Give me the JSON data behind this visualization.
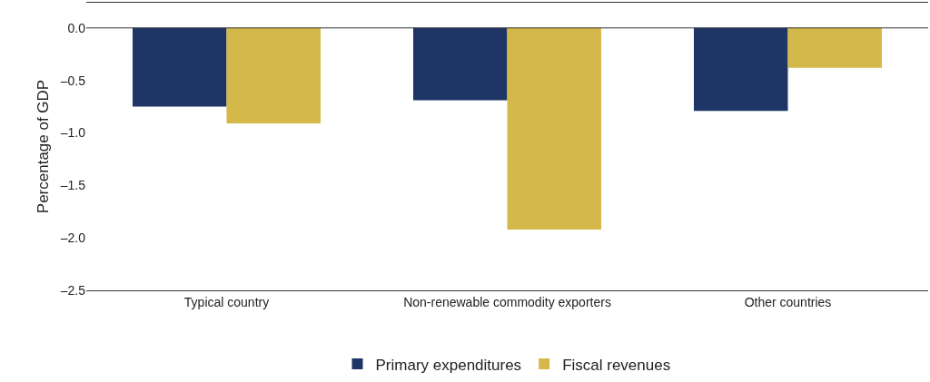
{
  "chart_data": {
    "type": "bar",
    "ylabel": "Percentage of GDP",
    "categories": [
      "Typical country",
      "Non-renewable commodity exporters",
      "Other countries"
    ],
    "series": [
      {
        "name": "Primary expenditures",
        "color": "#1f3566",
        "values": [
          -0.75,
          -0.69,
          -0.79
        ]
      },
      {
        "name": "Fiscal revenues",
        "color": "#d4b94a",
        "values": [
          -0.91,
          -1.92,
          -0.38
        ]
      }
    ],
    "ylim": [
      -2.5,
      0.24
    ],
    "yticks": [
      {
        "value": 0,
        "label": "0.0"
      },
      {
        "value": -0.5,
        "label": "–0.5"
      },
      {
        "value": -1,
        "label": "–1.0"
      },
      {
        "value": -1.5,
        "label": "–1.5"
      },
      {
        "value": -2,
        "label": "–2.0"
      },
      {
        "value": -2.5,
        "label": "–2.5"
      }
    ],
    "ref_lines": [
      {
        "axis": "y",
        "value": 0,
        "color": "#333333"
      }
    ],
    "grid": false,
    "legend": "bottom"
  }
}
